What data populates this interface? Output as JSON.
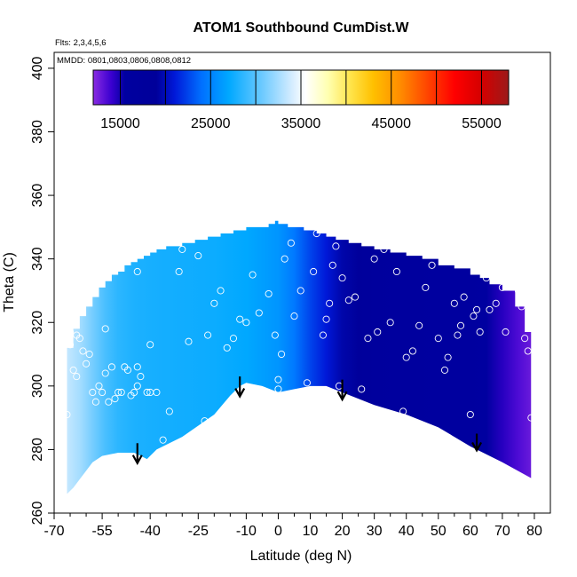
{
  "chart_data": {
    "type": "heatmap",
    "title": "ATOM1 Southbound CumDist.W",
    "annotations": {
      "flights": "Flts: 2,3,4,5,6",
      "dates": "MMDD: 0801,0803,0806,0808,0812"
    },
    "xlabel": "Latitude (deg N)",
    "ylabel": "Theta (C)",
    "xlim": [
      -70,
      85
    ],
    "ylim": [
      260,
      405
    ],
    "x_ticks": [
      -70,
      -55,
      -40,
      -25,
      -10,
      0,
      10,
      20,
      30,
      40,
      50,
      60,
      70,
      80
    ],
    "x_tick_labels": [
      "-70",
      "-55",
      "-40",
      "-25",
      "-10",
      "0",
      "10",
      "20",
      "30",
      "40",
      "50",
      "60",
      "70",
      "80"
    ],
    "x_minor_ticks": [
      -65,
      -60,
      -50,
      -45,
      -35,
      -30,
      -20,
      -15,
      -5,
      5,
      15,
      25,
      35,
      45,
      55,
      65,
      75
    ],
    "y_ticks": [
      260,
      280,
      300,
      320,
      340,
      360,
      380,
      400
    ],
    "y_tick_labels": [
      "260",
      "280",
      "300",
      "320",
      "340",
      "360",
      "380",
      "400"
    ],
    "colorbar": {
      "min": 12000,
      "max": 58000,
      "ticks": [
        15000,
        25000,
        35000,
        45000,
        55000
      ],
      "tick_labels": [
        "15000",
        "25000",
        "35000",
        "45000",
        "55000"
      ],
      "boundaries": [
        15000,
        20000,
        25000,
        30000,
        35000,
        40000,
        45000,
        50000,
        55000
      ],
      "colors": [
        [
          12000,
          "#8a2be2"
        ],
        [
          14000,
          "#3a00d0"
        ],
        [
          15500,
          "#0000a0"
        ],
        [
          19000,
          "#00009a"
        ],
        [
          21000,
          "#0018d8"
        ],
        [
          24000,
          "#0070ff"
        ],
        [
          27000,
          "#00a8ff"
        ],
        [
          30500,
          "#66c8ff"
        ],
        [
          34000,
          "#d4ecff"
        ],
        [
          35500,
          "#ffffff"
        ],
        [
          38000,
          "#ffffb0"
        ],
        [
          40500,
          "#ffe44a"
        ],
        [
          43000,
          "#ffc000"
        ],
        [
          46000,
          "#ff8c00"
        ],
        [
          49000,
          "#ff4500"
        ],
        [
          52000,
          "#ff0000"
        ],
        [
          55000,
          "#d40000"
        ],
        [
          58000,
          "#9c1a1a"
        ]
      ]
    },
    "field_description": "Cumulative westward distance shaded over latitude-theta; values increase toward the south (~33000) and decrease toward the north (~14000).",
    "field_by_latitude": {
      "lat": [
        -66,
        -62,
        -58,
        -54,
        -50,
        -45,
        -40,
        -30,
        -20,
        -10,
        0,
        5,
        10,
        15,
        20,
        25,
        30,
        40,
        50,
        60,
        65,
        70,
        75,
        79
      ],
      "value": [
        33500,
        32500,
        31000,
        29500,
        28500,
        28000,
        27800,
        27600,
        27400,
        27000,
        26000,
        24500,
        22500,
        21000,
        19500,
        18500,
        17500,
        16500,
        16000,
        15800,
        15500,
        14500,
        13500,
        12800
      ]
    },
    "domain_top": {
      "lat": [
        -66,
        -64,
        -62,
        -60,
        -58,
        -56,
        -54,
        -52,
        -50,
        -48,
        -46,
        -44,
        -42,
        -40,
        -38,
        -35,
        -30,
        -26,
        -22,
        -18,
        -14,
        -10,
        -6,
        -3,
        -1,
        0,
        3,
        8,
        12,
        15,
        18,
        22,
        26,
        30,
        35,
        40,
        45,
        50,
        55,
        60,
        63,
        66,
        70,
        74,
        77,
        79
      ],
      "theta": [
        312,
        318,
        322,
        325,
        328,
        331,
        333,
        335,
        336,
        338,
        339,
        340,
        341,
        342,
        343,
        344,
        345,
        346,
        347,
        348,
        349,
        350,
        350,
        351,
        352,
        351,
        350,
        349,
        348,
        347,
        346,
        345,
        344,
        343,
        342,
        341,
        340,
        338,
        337,
        335,
        334,
        332,
        330,
        325,
        317,
        302
      ]
    },
    "domain_bottom": {
      "lat": [
        -66,
        -64,
        -58,
        -55,
        -50,
        -45,
        -41,
        -38,
        -30,
        -20,
        -15,
        -12,
        -10,
        -5,
        0,
        5,
        10,
        15,
        20,
        25,
        30,
        40,
        50,
        60,
        70,
        79
      ],
      "theta": [
        266,
        268,
        276,
        278,
        279,
        279,
        277,
        280,
        284,
        291,
        297,
        300,
        301,
        300,
        298,
        299,
        300,
        300,
        298,
        296,
        294,
        291,
        287,
        281,
        276,
        271
      ]
    },
    "observations": {
      "lat": [
        -66,
        -65,
        -63,
        -62,
        -61,
        -59,
        -58,
        -57,
        -56,
        -55,
        -54,
        -53,
        -52,
        -51,
        -50,
        -49,
        -48,
        -47,
        -46,
        -45,
        -44,
        -43,
        -43,
        -41,
        -40,
        -38,
        -36,
        -34,
        -31,
        -30,
        -28,
        -25,
        -23,
        -22,
        -20,
        -18,
        -16,
        -14,
        -12,
        -10,
        -8,
        -6,
        -3,
        -1,
        0,
        0,
        1,
        2,
        4,
        5,
        7,
        9,
        11,
        12,
        14,
        15,
        16,
        17,
        18,
        19,
        20,
        22,
        24,
        26,
        28,
        30,
        31,
        33,
        35,
        37,
        39,
        40,
        42,
        44,
        46,
        48,
        50,
        52,
        53,
        55,
        56,
        57,
        58,
        60,
        61,
        62,
        63,
        65,
        66,
        68,
        70,
        71,
        73,
        75,
        76,
        77,
        78,
        79,
        -63,
        -60,
        -47,
        -44,
        -44,
        -40,
        -50,
        -54,
        -65,
        -64
      ],
      "theta": [
        291,
        313,
        316,
        315,
        311,
        310,
        298,
        295,
        300,
        298,
        304,
        295,
        306,
        296,
        298,
        298,
        306,
        305,
        297,
        298,
        300,
        303,
        342,
        298,
        298,
        298,
        283,
        292,
        336,
        343,
        314,
        341,
        289,
        316,
        326,
        330,
        312,
        315,
        321,
        320,
        335,
        323,
        329,
        316,
        299,
        302,
        310,
        340,
        345,
        322,
        330,
        301,
        336,
        348,
        316,
        321,
        326,
        338,
        344,
        300,
        334,
        327,
        328,
        299,
        315,
        340,
        317,
        343,
        320,
        336,
        292,
        309,
        311,
        319,
        331,
        338,
        315,
        305,
        309,
        326,
        316,
        319,
        328,
        291,
        322,
        324,
        317,
        334,
        324,
        326,
        331,
        317,
        334,
        330,
        325,
        315,
        311,
        290,
        303,
        307,
        343,
        336,
        306,
        313,
        340,
        318,
        317,
        305
      ],
      "description": "Open white circles: observation locations"
    },
    "arrows": [
      {
        "lat": -44,
        "theta_top": 282,
        "theta_tip": 276
      },
      {
        "lat": -12,
        "theta_top": 303,
        "theta_tip": 297
      },
      {
        "lat": 20,
        "theta_top": 302,
        "theta_tip": 296
      },
      {
        "lat": 62,
        "theta_top": 285,
        "theta_tip": 280
      }
    ]
  }
}
